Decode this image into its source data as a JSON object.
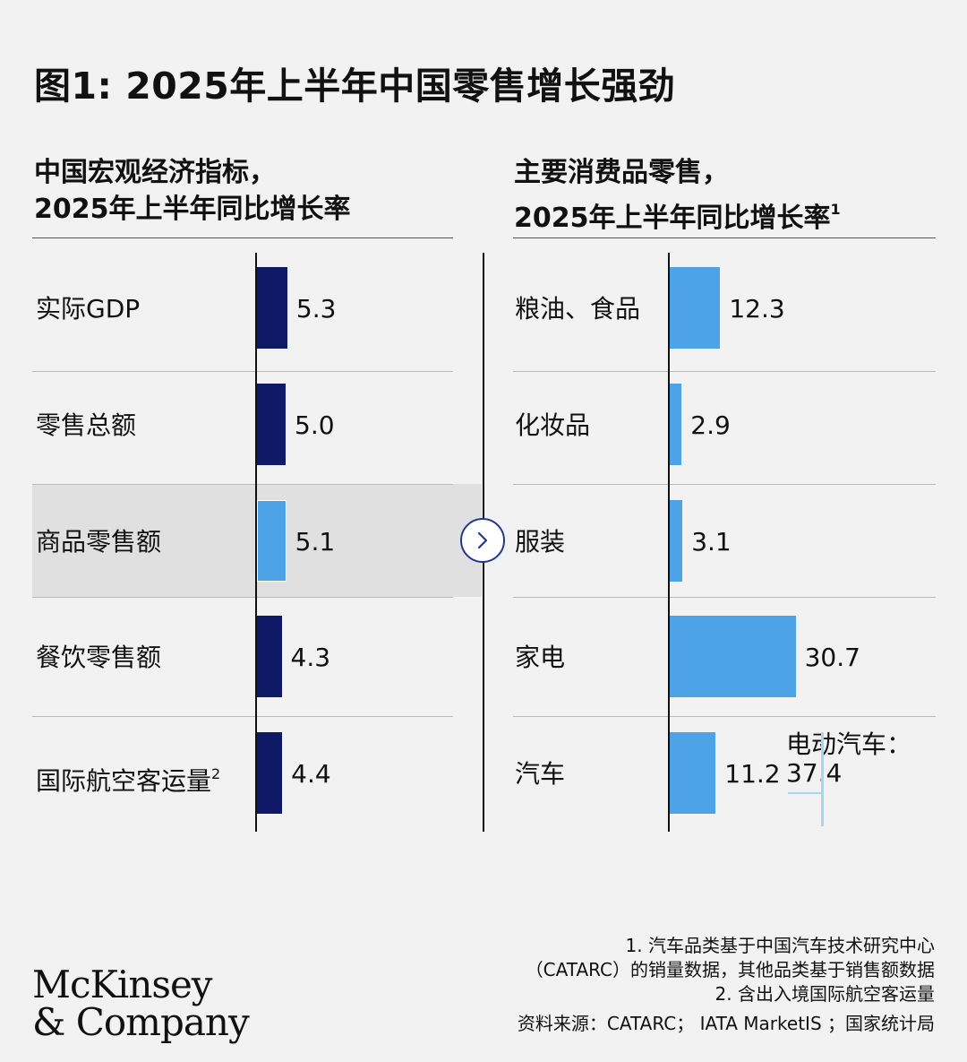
{
  "title": "图1: 2025年上半年中国零售增长强劲",
  "left_panel": {
    "heading_line1": "中国宏观经济指标，",
    "heading_line2": "2025年上半年同比增长率"
  },
  "right_panel": {
    "heading_line1": "主要消费品零售，",
    "heading_line2": "2025年上半年同比增长率",
    "heading_sup": "1"
  },
  "chart_data": [
    {
      "type": "bar",
      "orientation": "horizontal",
      "categories": [
        "实际GDP",
        "零售总额",
        "商品零售额",
        "餐饮零售额",
        "国际航空客运量"
      ],
      "category_sups": [
        "",
        "",
        "",
        "",
        "2"
      ],
      "values": [
        5.3,
        5.0,
        5.1,
        4.3,
        4.4
      ],
      "value_labels": [
        "5.3",
        "5.0",
        "5.1",
        "4.3",
        "4.4"
      ],
      "highlighted_category": "商品零售额",
      "colors": {
        "default": "#0f1a66",
        "highlight": "#4da3e6"
      },
      "xlim": [
        0,
        15
      ]
    },
    {
      "type": "bar",
      "orientation": "horizontal",
      "categories": [
        "粮油、食品",
        "化妆品",
        "服装",
        "家电",
        "汽车"
      ],
      "values": [
        12.3,
        2.9,
        3.1,
        30.7,
        11.2
      ],
      "value_labels": [
        "12.3",
        "2.9",
        "3.1",
        "30.7",
        "11.2"
      ],
      "annotation": {
        "category": "汽车",
        "label_line1": "电动汽车：",
        "label_line2": "37.4",
        "value": 37.4
      },
      "colors": {
        "bar": "#4da3e6",
        "annotation_line": "#a9d6ef"
      },
      "xlim": [
        0,
        37.4
      ]
    }
  ],
  "icons": {
    "arrow": "chevron-right-icon"
  },
  "footnotes": {
    "line1": "1.   汽车品类基于中国汽车技术研究中心",
    "line2": "（CATARC）的销量数据，其他品类基于销售额数据",
    "line3": "2.   含出入境国际航空客运量",
    "source": "资料来源：CATARC； IATA MarketIS ；国家统计局"
  },
  "logo": {
    "line1": "McKinsey",
    "line2": "& Company"
  }
}
